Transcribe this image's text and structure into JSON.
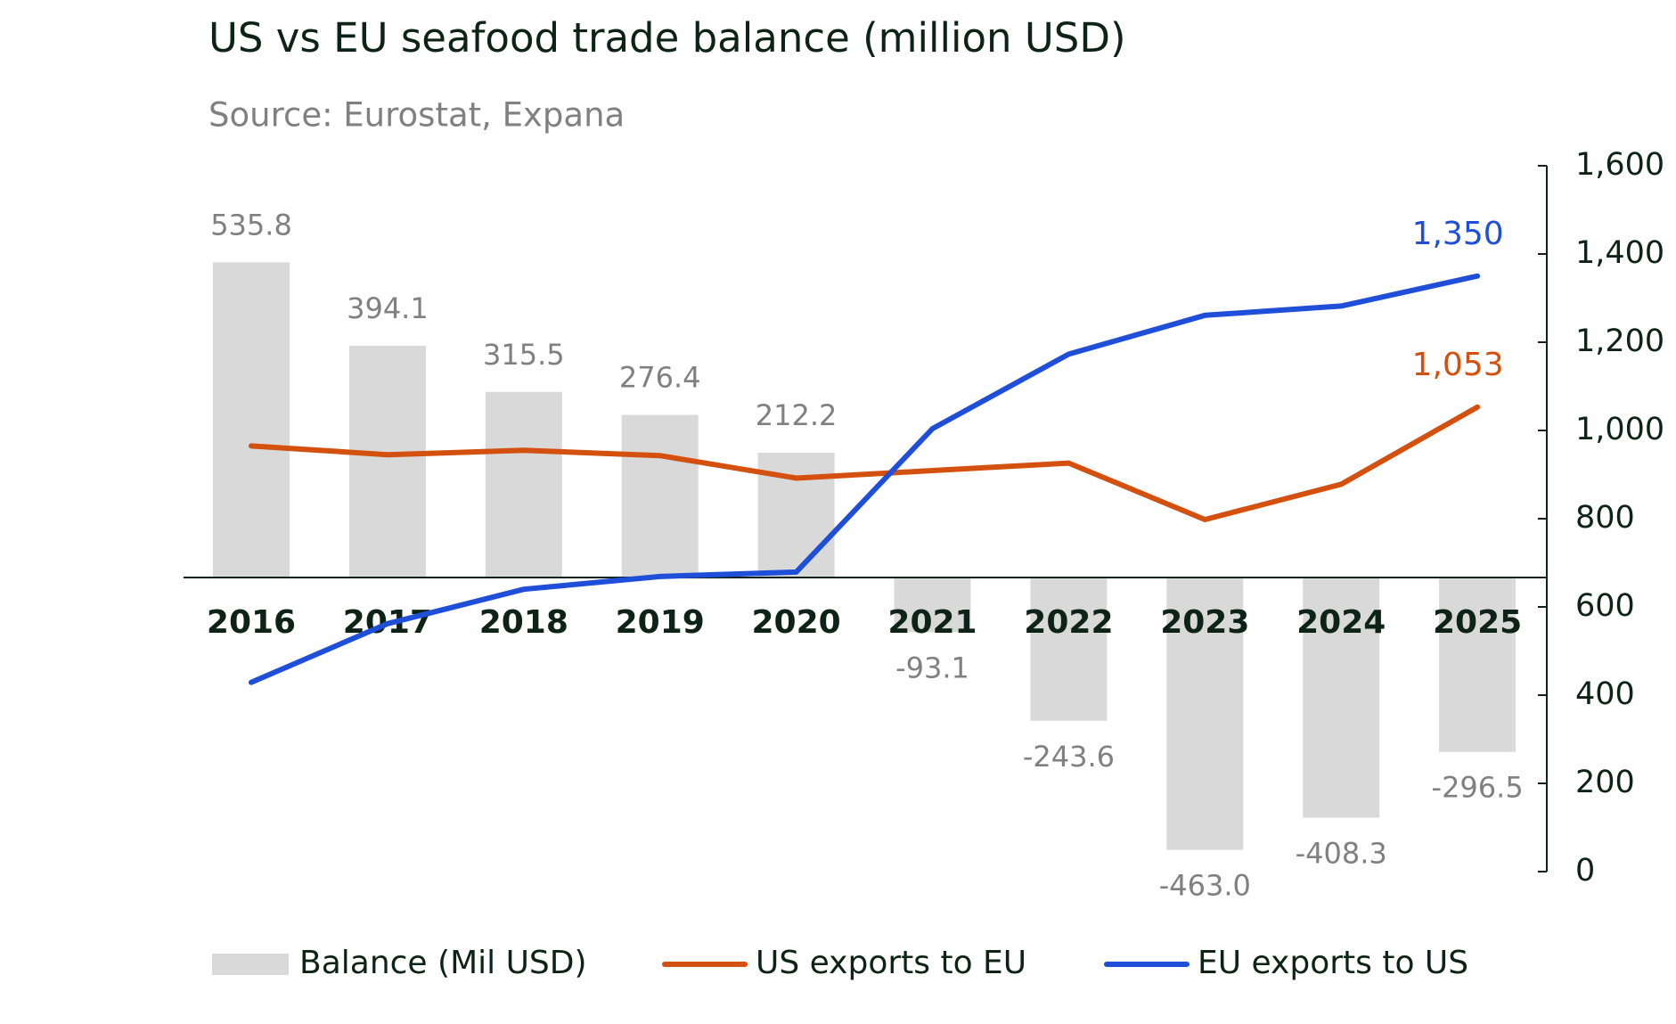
{
  "chart_data": {
    "type": "bar-line",
    "title": "US vs EU seafood trade balance (million USD)",
    "subtitle": "Source: Eurostat, Expana",
    "categories": [
      "2016",
      "2017",
      "2018",
      "2019",
      "2020",
      "2021",
      "2022",
      "2023",
      "2024",
      "2025"
    ],
    "ylim": [
      -500,
      700
    ],
    "y2lim": [
      0,
      1600
    ],
    "y2ticks": [
      0,
      200,
      400,
      600,
      800,
      {
        "value": 1000,
        "label": "1,000"
      },
      {
        "value": 1200,
        "label": "1,200"
      },
      {
        "value": 1400,
        "label": "1,400"
      },
      {
        "value": 1600,
        "label": "1,600"
      }
    ],
    "series": [
      {
        "name": "Balance (Mil USD)",
        "type": "bar",
        "color": "#d9d9d9",
        "label_color": "#808080",
        "values": [
          535.8,
          394.1,
          315.5,
          276.4,
          212.2,
          -93.1,
          -243.6,
          -463.0,
          -408.3,
          -296.5
        ],
        "value_labels": [
          "535.8",
          "394.1",
          "315.5",
          "276.4",
          "212.2",
          "-93.1",
          "-243.6",
          "-463.0",
          "-408.3",
          "-296.5"
        ]
      },
      {
        "name": "US exports to EU",
        "type": "line",
        "axis": "y2",
        "color": "#d4500f",
        "values": [
          965,
          945,
          955,
          943,
          892,
          909,
          926,
          798,
          878,
          1053
        ],
        "end_label": "1,053"
      },
      {
        "name": "EU exports to US",
        "type": "line",
        "axis": "y2",
        "color": "#1f4fd8",
        "values": [
          429,
          562,
          640,
          669,
          679,
          1004,
          1173,
          1261,
          1282,
          1350
        ],
        "end_label": "1,350"
      }
    ]
  }
}
